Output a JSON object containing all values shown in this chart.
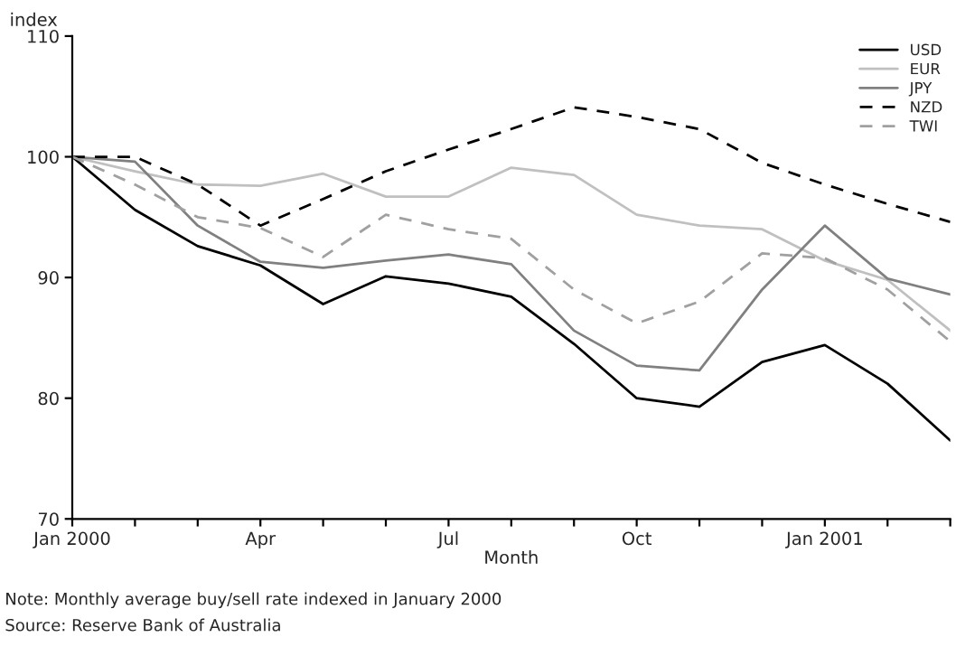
{
  "chart_data": {
    "type": "line",
    "ylabel": "index",
    "xlabel": "Month",
    "x": [
      "2000-01",
      "2000-02",
      "2000-03",
      "2000-04",
      "2000-05",
      "2000-06",
      "2000-07",
      "2000-08",
      "2000-09",
      "2000-10",
      "2000-11",
      "2000-12",
      "2001-01",
      "2001-02",
      "2001-03"
    ],
    "series": [
      {
        "name": "USD",
        "color": "#000000",
        "line_style": "solid",
        "values": [
          100,
          95.6,
          92.6,
          91.0,
          87.8,
          90.1,
          89.5,
          88.4,
          84.5,
          80.0,
          79.3,
          83.0,
          84.4,
          81.2,
          76.5
        ]
      },
      {
        "name": "EUR",
        "color": "#c0c0c0",
        "line_style": "solid",
        "values": [
          100,
          98.8,
          97.7,
          97.6,
          98.6,
          96.7,
          96.7,
          99.1,
          98.5,
          95.2,
          94.3,
          94.0,
          91.4,
          89.8,
          85.6
        ]
      },
      {
        "name": "JPY",
        "color": "#808080",
        "line_style": "solid",
        "values": [
          100,
          99.6,
          94.3,
          91.3,
          90.8,
          91.4,
          91.9,
          91.1,
          85.6,
          82.7,
          82.3,
          89.0,
          94.3,
          89.9,
          88.6
        ]
      },
      {
        "name": "NZD",
        "color": "#000000",
        "line_style": "dashed",
        "values": [
          100,
          100,
          97.7,
          94.3,
          96.5,
          98.8,
          100.6,
          102.3,
          104.1,
          103.3,
          102.3,
          99.5,
          97.7,
          96.1,
          94.6
        ]
      },
      {
        "name": "TWI",
        "color": "#a0a0a0",
        "line_style": "dashed",
        "values": [
          100,
          97.7,
          95.0,
          94.1,
          91.7,
          95.2,
          94.0,
          93.2,
          89.0,
          86.2,
          88.0,
          92.0,
          91.6,
          89.0,
          84.7
        ]
      }
    ],
    "xlim": [
      "2000-01",
      "2001-03"
    ],
    "xticks": [
      {
        "value": "2000-01",
        "label": "Jan 2000"
      },
      {
        "value": "2000-02",
        "label": null
      },
      {
        "value": "2000-03",
        "label": null
      },
      {
        "value": "2000-04",
        "label": "Apr"
      },
      {
        "value": "2000-05",
        "label": null
      },
      {
        "value": "2000-06",
        "label": null
      },
      {
        "value": "2000-07",
        "label": "Jul"
      },
      {
        "value": "2000-08",
        "label": null
      },
      {
        "value": "2000-09",
        "label": null
      },
      {
        "value": "2000-10",
        "label": "Oct"
      },
      {
        "value": "2000-11",
        "label": null
      },
      {
        "value": "2000-12",
        "label": null
      },
      {
        "value": "2001-01",
        "label": "Jan 2001"
      },
      {
        "value": "2001-02",
        "label": null
      },
      {
        "value": "2001-03",
        "label": null
      }
    ],
    "ylim": [
      70,
      110
    ],
    "yticks": [
      70,
      80,
      90,
      100,
      110
    ],
    "grid": false,
    "legend": "top right",
    "annotations": [
      "Note: Monthly average buy/sell rate indexed in January 2000",
      "Source: Reserve Bank of Australia"
    ]
  }
}
